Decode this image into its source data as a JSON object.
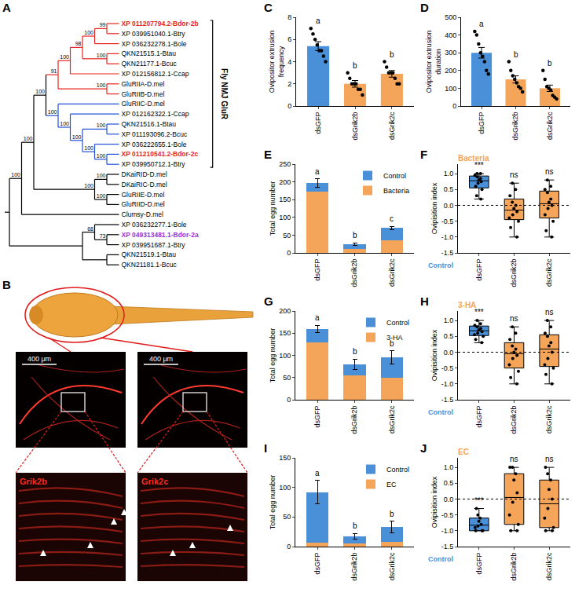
{
  "tree": {
    "panel": "A",
    "root": {
      "children": [
        {
          "support": 100,
          "children": [
            {
              "support": 100,
              "children": [
                {
                  "support": 100,
                  "bracket": "Fly NMJ GluR",
                  "children": [
                    {
                      "support": 91,
                      "color": "#e8251f",
                      "children": [
                        {
                          "support": 100,
                          "children": [
                            {
                              "support": 98,
                              "children": [
                                {
                                  "support": 100,
                                  "children": [
                                    {
                                      "support": 99,
                                      "children": [
                                        {
                                          "label": "XP 011207794.2-Bdor-2b",
                                          "color": "#e8251f"
                                        },
                                        {
                                          "label": "XP 039951040.1-Btry"
                                        }
                                      ]
                                    },
                                    {
                                      "label": "XP 036232278.1-Bole"
                                    }
                                  ]
                                },
                                {
                                  "support": 100,
                                  "children": [
                                    {
                                      "label": "QKN21515.1-Btau"
                                    },
                                    {
                                      "label": "QKN21177.1-Bcuc"
                                    }
                                  ]
                                }
                              ]
                            },
                            {
                              "label": "XP 012156812.1-Ccap"
                            }
                          ]
                        },
                        {
                          "support": 100,
                          "children": [
                            {
                              "label": "GluRIIA-D.mel"
                            },
                            {
                              "label": "GluRIIB-D.mel"
                            }
                          ]
                        }
                      ]
                    },
                    {
                      "support": 100,
                      "color": "#2350d8",
                      "children": [
                        {
                          "label": "GluRIIC-D.mel"
                        },
                        {
                          "support": 100,
                          "children": [
                            {
                              "label": "XP 012162322.1-Ccap"
                            },
                            {
                              "support": 100,
                              "children": [
                                {
                                  "support": 100,
                                  "children": [
                                    {
                                      "label": "QKN21516.1-Btau"
                                    },
                                    {
                                      "label": "XP 011193096.2-Bcuc"
                                    }
                                  ]
                                },
                                {
                                  "support": 100,
                                  "children": [
                                    {
                                      "label": "XP 036222655.1-Bole"
                                    },
                                    {
                                      "support": 100,
                                      "children": [
                                        {
                                          "label": "XP 011210541.2-Bdor-2c",
                                          "color": "#e8251f"
                                        },
                                        {
                                          "label": "XP 039950712.1-Btry"
                                        }
                                      ]
                                    }
                                  ]
                                }
                              ]
                            }
                          ]
                        }
                      ]
                    }
                  ]
                },
                {
                  "support": 100,
                  "children": [
                    {
                      "support": 100,
                      "children": [
                        {
                          "label": "DKaiRID-D.mel"
                        },
                        {
                          "label": "DKaiRIC-D.mel"
                        }
                      ]
                    },
                    {
                      "support": 100,
                      "children": [
                        {
                          "label": "GluRIIE-D.mel"
                        },
                        {
                          "label": "GluRIID-D.mel"
                        }
                      ]
                    }
                  ]
                }
              ]
            },
            {
              "label": "Clumsy-D.mel"
            }
          ]
        },
        {
          "children": [
            {
              "support": 68,
              "children": [
                {
                  "label": "XP 036232277.1-Bole"
                },
                {
                  "support": 73,
                  "children": [
                    {
                      "label": "XP 049313481.1-Bdor-2a",
                      "color": "#9b30d9"
                    },
                    {
                      "label": "XP 039951687.1-Btry"
                    }
                  ]
                }
              ]
            },
            {
              "children": [
                {
                  "label": "QKN21519.1-Btau"
                },
                {
                  "label": "QKN21181.1-Bcuc"
                }
              ]
            }
          ]
        }
      ]
    }
  },
  "image_panel": {
    "panel": "B",
    "scale_bar": "400 μm",
    "images": [
      {
        "label": "Grik2b"
      },
      {
        "label": "Grik2c"
      }
    ]
  },
  "chart_data": [
    {
      "panel": "C",
      "type": "bar",
      "ylabel": "Ovipositor extrusion frequency",
      "categories": [
        "dsGFP",
        "dsGrik2b",
        "dsGrik2c"
      ],
      "values": [
        5.4,
        2.0,
        2.9
      ],
      "errors": [
        0.4,
        0.3,
        0.3
      ],
      "points": [
        [
          7,
          6.5,
          6,
          5.5,
          5,
          5,
          4.5,
          4
        ],
        [
          3,
          2.5,
          2,
          2,
          2,
          1.5,
          1.5,
          1
        ],
        [
          4,
          3.5,
          3,
          3,
          3,
          2.5,
          2,
          2
        ]
      ],
      "colors": [
        "#4a90d9",
        "#f5a55a",
        "#f5a55a"
      ],
      "letters": [
        "a",
        "b",
        "b"
      ],
      "ylim": [
        0,
        8
      ],
      "yticks": [
        0,
        2,
        4,
        6,
        8
      ]
    },
    {
      "panel": "D",
      "type": "bar",
      "ylabel": "Ovipositor extrusion duration",
      "categories": [
        "dsGFP",
        "dsGrik2b",
        "dsGrik2c"
      ],
      "values": [
        300,
        150,
        100
      ],
      "errors": [
        30,
        20,
        18
      ],
      "points": [
        [
          420,
          400,
          350,
          300,
          280,
          250,
          200,
          180
        ],
        [
          250,
          200,
          170,
          150,
          130,
          110,
          100,
          80
        ],
        [
          200,
          150,
          110,
          100,
          90,
          60,
          50,
          40
        ]
      ],
      "colors": [
        "#4a90d9",
        "#f5a55a",
        "#f5a55a"
      ],
      "letters": [
        "a",
        "b",
        "b"
      ],
      "ylim": [
        0,
        500
      ],
      "yticks": [
        0,
        100,
        200,
        300,
        400,
        500
      ]
    },
    {
      "panel": "E",
      "type": "bar",
      "stacked": true,
      "ylabel": "Total egg number",
      "categories": [
        "dsGFP",
        "dsGrik2b",
        "dsGrik2c"
      ],
      "series": [
        {
          "name": "Bacteria",
          "color": "#f5a55a",
          "values": [
            172,
            12,
            35
          ]
        },
        {
          "name": "Control",
          "color": "#4a90d9",
          "values": [
            25,
            12,
            35
          ],
          "errors": [
            12,
            4,
            5
          ]
        }
      ],
      "letters": [
        "a",
        "b",
        "c"
      ],
      "legend": "top right",
      "ylim": [
        0,
        250
      ],
      "yticks": [
        0,
        50,
        100,
        150,
        200,
        250
      ]
    },
    {
      "panel": "F",
      "type": "box",
      "ylabel": "Ovipisition index",
      "treatment": {
        "name": "Bacteria",
        "color": "#f5a55a"
      },
      "control": {
        "name": "Control",
        "color": "#4a90d9"
      },
      "categories": [
        "dsGFP",
        "dsGrik2b",
        "dsGrik2c"
      ],
      "colors": [
        "#4a90d9",
        "#f5a55a",
        "#f5a55a"
      ],
      "points": [
        [
          1,
          1,
          0.95,
          0.9,
          0.85,
          0.8,
          0.75,
          0.7,
          0.6,
          0.5,
          0.3,
          0.2
        ],
        [
          0.7,
          0.5,
          0.3,
          0.1,
          0,
          -0.1,
          -0.2,
          -0.3,
          -0.4,
          -0.5,
          -0.7,
          -1
        ],
        [
          0.8,
          0.6,
          0.5,
          0.4,
          0.2,
          0.1,
          0,
          -0.1,
          -0.3,
          -0.5,
          -0.8,
          -1
        ]
      ],
      "significance": [
        "***",
        "ns",
        "ns"
      ],
      "reference_line": 0,
      "ylim": [
        -1.5,
        1.3
      ],
      "yticks": [
        -1.5,
        {
          "value": -1,
          "label": "-1.0"
        },
        -0.5,
        {
          "value": 0,
          "label": "0.0"
        },
        0.5,
        {
          "value": 1,
          "label": "1.0"
        }
      ]
    },
    {
      "panel": "G",
      "type": "bar",
      "stacked": true,
      "ylabel": "Total egg number",
      "categories": [
        "dsGFP",
        "dsGrik2b",
        "dsGrik2c"
      ],
      "series": [
        {
          "name": "3-HA",
          "color": "#f5a55a",
          "values": [
            130,
            55,
            50
          ]
        },
        {
          "name": "Control",
          "color": "#4a90d9",
          "values": [
            30,
            25,
            45
          ],
          "errors": [
            8,
            12,
            15
          ]
        }
      ],
      "letters": [
        "a",
        "b",
        "b"
      ],
      "legend": "top right",
      "ylim": [
        0,
        200
      ],
      "yticks": [
        0,
        50,
        100,
        150,
        200
      ]
    },
    {
      "panel": "H",
      "type": "box",
      "ylabel": "Ovipisition index",
      "treatment": {
        "name": "3-HA",
        "color": "#f5a55a"
      },
      "control": {
        "name": "Control",
        "color": "#4a90d9"
      },
      "categories": [
        "dsGFP",
        "dsGrik2b",
        "dsGrik2c"
      ],
      "colors": [
        "#4a90d9",
        "#f5a55a",
        "#f5a55a"
      ],
      "points": [
        [
          1,
          0.9,
          0.85,
          0.8,
          0.75,
          0.7,
          0.65,
          0.6,
          0.55,
          0.5,
          0.4,
          0.3
        ],
        [
          0.8,
          0.6,
          0.4,
          0.2,
          0.1,
          0,
          -0.1,
          -0.2,
          -0.4,
          -0.6,
          -0.8,
          -1
        ],
        [
          1,
          0.8,
          0.6,
          0.5,
          0.3,
          0.2,
          0,
          -0.2,
          -0.4,
          -0.5,
          -0.7,
          -1
        ]
      ],
      "significance": [
        "***",
        "ns",
        "ns"
      ],
      "reference_line": 0,
      "ylim": [
        -1.5,
        1.3
      ],
      "yticks": [
        -1.5,
        {
          "value": -1,
          "label": "-1.0"
        },
        -0.5,
        {
          "value": 0,
          "label": "0.0"
        },
        0.5,
        {
          "value": 1,
          "label": "1.0"
        }
      ]
    },
    {
      "panel": "I",
      "type": "bar",
      "stacked": true,
      "ylabel": "Total egg number",
      "categories": [
        "dsGFP",
        "dsGrik2b",
        "dsGrik2c"
      ],
      "series": [
        {
          "name": "EC",
          "color": "#f5a55a",
          "values": [
            7,
            5,
            8
          ]
        },
        {
          "name": "Control",
          "color": "#4a90d9",
          "values": [
            85,
            12,
            25
          ],
          "errors": [
            20,
            5,
            10
          ]
        }
      ],
      "letters": [
        "a",
        "b",
        "b"
      ],
      "legend": "top right",
      "ylim": [
        0,
        150
      ],
      "yticks": [
        0,
        50,
        100,
        150
      ]
    },
    {
      "panel": "J",
      "type": "box",
      "ylabel": "Ovipisition index",
      "treatment": {
        "name": "EC",
        "color": "#f5a55a"
      },
      "control": {
        "name": "Control",
        "color": "#4a90d9"
      },
      "categories": [
        "dsGFP",
        "dsGrik2b",
        "dsGrik2c"
      ],
      "colors": [
        "#4a90d9",
        "#f5a55a",
        "#f5a55a"
      ],
      "points": [
        [
          -0.3,
          -0.5,
          -0.6,
          -0.7,
          -0.8,
          -0.85,
          -0.9,
          -1,
          -1,
          -1
        ],
        [
          1,
          1,
          0.8,
          0.6,
          0.2,
          -0.1,
          -0.5,
          -0.8,
          -1,
          -1
        ],
        [
          1,
          0.8,
          0.6,
          0.3,
          0,
          -0.3,
          -0.6,
          -0.9,
          -1,
          -1
        ]
      ],
      "significance": [
        "***",
        "ns",
        "ns"
      ],
      "reference_line": 0,
      "ylim": [
        -1.5,
        1.3
      ],
      "yticks": [
        -1.5,
        {
          "value": -1,
          "label": "-1.0"
        },
        -0.5,
        {
          "value": 0,
          "label": "0.0"
        },
        0.5,
        {
          "value": 1,
          "label": "1.0"
        }
      ]
    }
  ]
}
